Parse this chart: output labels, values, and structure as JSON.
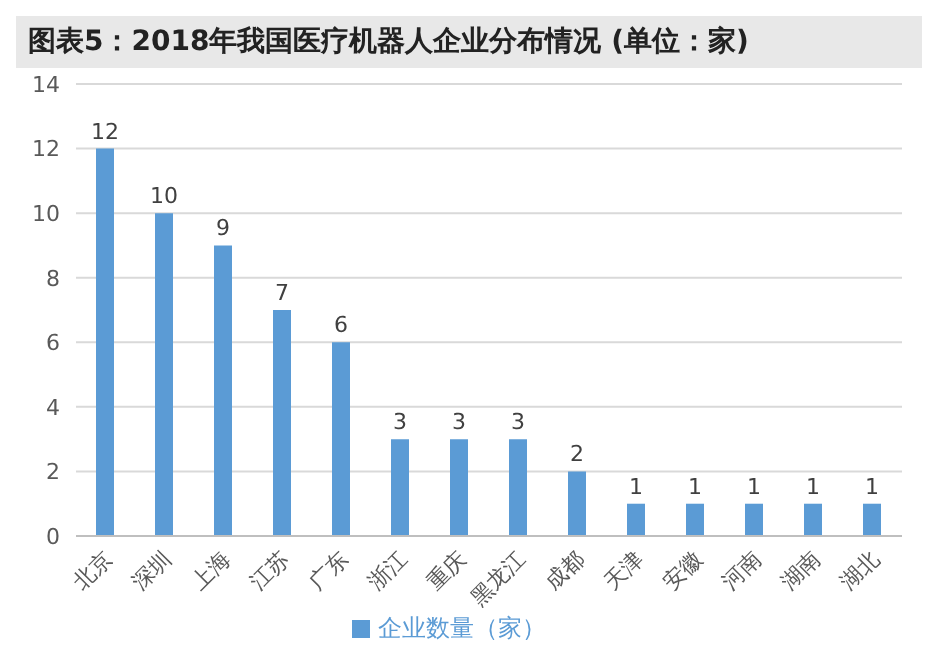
{
  "chart_data": {
    "type": "bar",
    "title": "图表5：2018年我国医疗机器人企业分布情况 (单位：家)",
    "categories": [
      "北京",
      "深圳",
      "上海",
      "江苏",
      "广东",
      "浙江",
      "重庆",
      "黑龙江",
      "成都",
      "天津",
      "安徽",
      "河南",
      "湖南",
      "湖北"
    ],
    "series": [
      {
        "name": "企业数量（家）",
        "color": "#5b9bd5",
        "values": [
          12,
          10,
          9,
          7,
          6,
          3,
          3,
          3,
          2,
          1,
          1,
          1,
          1,
          1
        ]
      }
    ],
    "ylim": [
      0,
      14
    ],
    "yticks": [
      0,
      2,
      4,
      6,
      8,
      10,
      12,
      14
    ],
    "grid": "y",
    "legend": "bottom",
    "data_labels": true
  }
}
